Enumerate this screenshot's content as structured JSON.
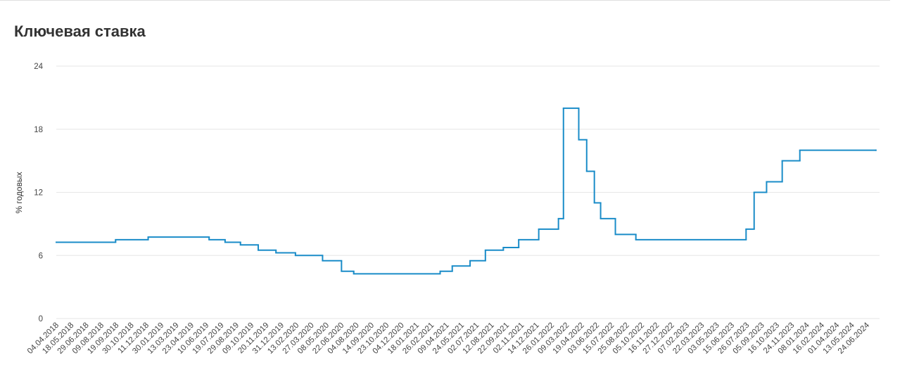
{
  "chart_data": {
    "type": "line",
    "title": "Ключевая ставка",
    "y_label": "% годовых",
    "ylim": [
      0,
      24
    ],
    "yticks": [
      0,
      6,
      12,
      18,
      24
    ],
    "grid": true,
    "step": true,
    "categories": [
      "04.04.2018",
      "18.05.2018",
      "29.06.2018",
      "09.08.2018",
      "19.09.2018",
      "30.10.2018",
      "11.12.2018",
      "30.01.2019",
      "13.03.2019",
      "23.04.2019",
      "10.06.2019",
      "19.07.2019",
      "29.08.2019",
      "09.10.2019",
      "20.11.2019",
      "31.12.2019",
      "13.02.2020",
      "27.03.2020",
      "08.05.2020",
      "22.06.2020",
      "04.08.2020",
      "14.09.2020",
      "23.10.2020",
      "04.12.2020",
      "18.01.2021",
      "26.02.2021",
      "09.04.2021",
      "24.05.2021",
      "02.07.2021",
      "12.08.2021",
      "22.09.2021",
      "02.11.2021",
      "14.12.2021",
      "26.01.2022",
      "09.03.2022",
      "19.04.2022",
      "03.06.2022",
      "15.07.2022",
      "25.08.2022",
      "05.10.2022",
      "16.11.2022",
      "27.12.2022",
      "07.02.2023",
      "22.03.2023",
      "03.05.2023",
      "15.06.2023",
      "26.07.2023",
      "05.09.2023",
      "16.10.2023",
      "24.11.2023",
      "08.01.2024",
      "16.02.2024",
      "01.04.2024",
      "13.05.2024",
      "24.06.2024"
    ],
    "series": [
      {
        "color": "#1a8cc8",
        "x": [
          "04.04.2018",
          "17.09.2018",
          "17.12.2018",
          "17.06.2019",
          "29.07.2019",
          "09.09.2019",
          "28.10.2019",
          "16.12.2019",
          "10.02.2020",
          "27.04.2020",
          "22.06.2020",
          "27.07.2020",
          "22.03.2021",
          "26.04.2021",
          "15.06.2021",
          "26.07.2021",
          "13.09.2021",
          "25.10.2021",
          "20.12.2021",
          "14.02.2022",
          "28.02.2022",
          "11.04.2022",
          "04.05.2022",
          "27.05.2022",
          "14.06.2022",
          "25.07.2022",
          "19.09.2022",
          "24.07.2023",
          "15.08.2023",
          "18.09.2023",
          "30.10.2023",
          "18.12.2023",
          "19.07.2024"
        ],
        "values": [
          7.25,
          7.5,
          7.75,
          7.5,
          7.25,
          7,
          6.5,
          6.25,
          6,
          5.5,
          4.5,
          4.25,
          4.5,
          5,
          5.5,
          6.5,
          6.75,
          7.5,
          8.5,
          9.5,
          20,
          17,
          14,
          11,
          9.5,
          8,
          7.5,
          8.5,
          12,
          13,
          15,
          16,
          16
        ]
      }
    ]
  }
}
